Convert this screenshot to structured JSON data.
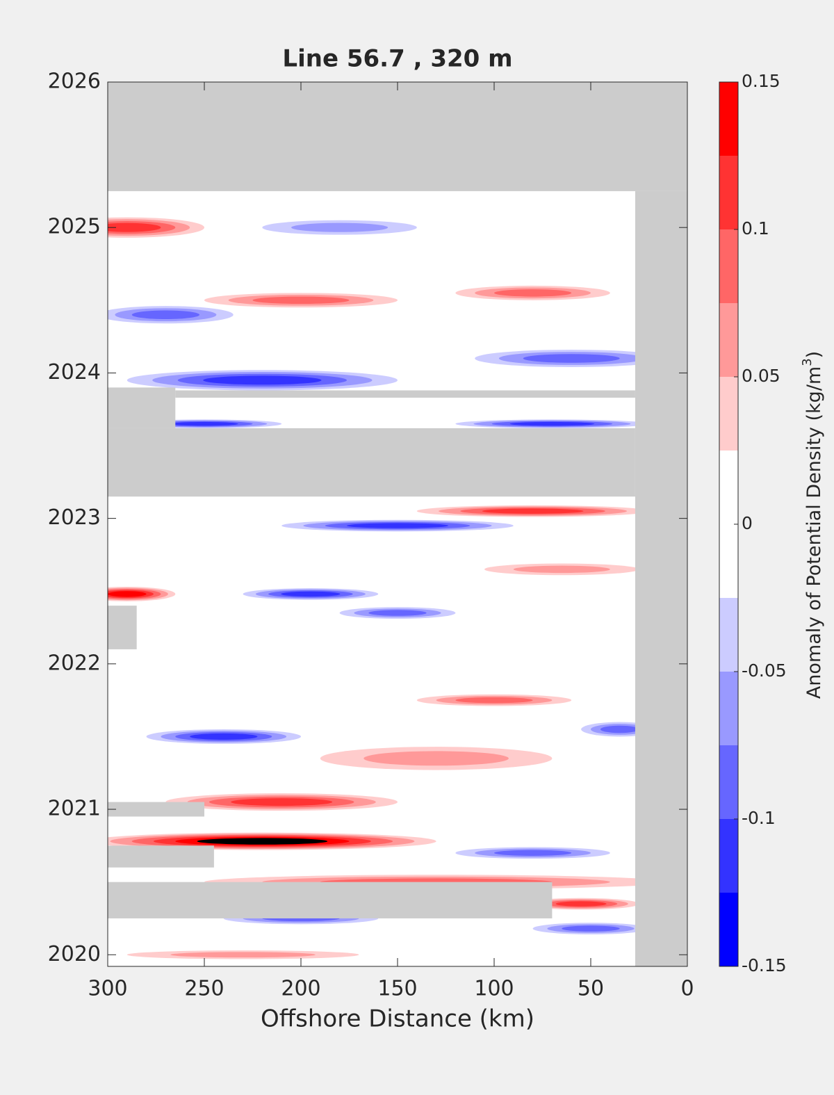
{
  "chart_data": {
    "type": "contour",
    "title": "Line 56.7 , 320 m",
    "xlabel": "Offshore Distance (km)",
    "clabel": "Anomaly of Potential Density (kg/m",
    "clabel_sup": "3",
    "clabel_end": ")",
    "xlim": [
      300,
      0
    ],
    "xticks": [
      300,
      250,
      200,
      150,
      100,
      50,
      0
    ],
    "ylim": [
      2019.92,
      2026
    ],
    "yticks": [
      2020,
      2021,
      2022,
      2023,
      2024,
      2025,
      2026
    ],
    "levels": [
      -0.15,
      -0.125,
      -0.1,
      -0.075,
      -0.05,
      -0.025,
      0,
      0.025,
      0.05,
      0.075,
      0.1,
      0.125,
      0.15
    ],
    "colors": [
      "#0000ff",
      "#3333ff",
      "#6666ff",
      "#9999ff",
      "#ccccff",
      "#ffffff",
      "#ffffff",
      "#ffcccc",
      "#ff9999",
      "#ff6666",
      "#ff3333",
      "#ff0000"
    ],
    "cticks": [
      -0.15,
      -0.1,
      -0.05,
      0,
      0.05,
      0.1,
      0.15
    ],
    "no_data_color": "#cccccc",
    "no_data": [
      {
        "x": [
          300,
          0
        ],
        "y": [
          2025.25,
          2026
        ]
      },
      {
        "x": [
          27,
          0
        ],
        "y": [
          2019.92,
          2025.25
        ]
      },
      {
        "x": [
          300,
          27
        ],
        "y": [
          2023.15,
          2023.62
        ]
      },
      {
        "x": [
          300,
          265
        ],
        "y": [
          2023.62,
          2023.9
        ]
      },
      {
        "x": [
          265,
          27
        ],
        "y": [
          2023.83,
          2023.88
        ]
      },
      {
        "x": [
          300,
          285
        ],
        "y": [
          2022.1,
          2022.4
        ]
      },
      {
        "x": [
          300,
          250
        ],
        "y": [
          2020.95,
          2021.05
        ]
      },
      {
        "x": [
          300,
          245
        ],
        "y": [
          2020.6,
          2020.75
        ]
      },
      {
        "x": [
          300,
          70
        ],
        "y": [
          2020.25,
          2020.5
        ]
      }
    ],
    "features": [
      {
        "x": 290,
        "y": 2025.0,
        "rx": 40,
        "ry": 0.07,
        "value": 0.11
      },
      {
        "x": 200,
        "y": 2024.5,
        "rx": 50,
        "ry": 0.05,
        "value": 0.08
      },
      {
        "x": 80,
        "y": 2024.55,
        "rx": 40,
        "ry": 0.05,
        "value": 0.09
      },
      {
        "x": 180,
        "y": 2025.0,
        "rx": 40,
        "ry": 0.05,
        "value": -0.07
      },
      {
        "x": 270,
        "y": 2024.4,
        "rx": 35,
        "ry": 0.06,
        "value": -0.08
      },
      {
        "x": 220,
        "y": 2023.95,
        "rx": 70,
        "ry": 0.07,
        "value": -0.12
      },
      {
        "x": 60,
        "y": 2024.1,
        "rx": 50,
        "ry": 0.06,
        "value": -0.09
      },
      {
        "x": 250,
        "y": 2023.65,
        "rx": 40,
        "ry": 0.03,
        "value": -0.11
      },
      {
        "x": 70,
        "y": 2023.65,
        "rx": 50,
        "ry": 0.03,
        "value": -0.1
      },
      {
        "x": 150,
        "y": 2022.95,
        "rx": 60,
        "ry": 0.04,
        "value": -0.1
      },
      {
        "x": 80,
        "y": 2023.05,
        "rx": 60,
        "ry": 0.04,
        "value": 0.1
      },
      {
        "x": 290,
        "y": 2022.48,
        "rx": 25,
        "ry": 0.05,
        "value": 0.13
      },
      {
        "x": 195,
        "y": 2022.48,
        "rx": 35,
        "ry": 0.04,
        "value": -0.11
      },
      {
        "x": 150,
        "y": 2022.35,
        "rx": 30,
        "ry": 0.04,
        "value": -0.09
      },
      {
        "x": 65,
        "y": 2022.65,
        "rx": 40,
        "ry": 0.04,
        "value": 0.07
      },
      {
        "x": 240,
        "y": 2021.5,
        "rx": 40,
        "ry": 0.05,
        "value": -0.11
      },
      {
        "x": 100,
        "y": 2021.75,
        "rx": 40,
        "ry": 0.04,
        "value": 0.08
      },
      {
        "x": 35,
        "y": 2021.55,
        "rx": 20,
        "ry": 0.05,
        "value": -0.09
      },
      {
        "x": 130,
        "y": 2021.35,
        "rx": 60,
        "ry": 0.08,
        "value": 0.05
      },
      {
        "x": 210,
        "y": 2021.05,
        "rx": 60,
        "ry": 0.06,
        "value": 0.11
      },
      {
        "x": 220,
        "y": 2020.78,
        "rx": 90,
        "ry": 0.06,
        "value": 0.15
      },
      {
        "x": 80,
        "y": 2020.7,
        "rx": 40,
        "ry": 0.04,
        "value": -0.08
      },
      {
        "x": 130,
        "y": 2020.5,
        "rx": 120,
        "ry": 0.05,
        "value": 0.08
      },
      {
        "x": 55,
        "y": 2020.35,
        "rx": 30,
        "ry": 0.04,
        "value": 0.1
      },
      {
        "x": 200,
        "y": 2020.25,
        "rx": 40,
        "ry": 0.04,
        "value": -0.09
      },
      {
        "x": 50,
        "y": 2020.18,
        "rx": 30,
        "ry": 0.04,
        "value": -0.09
      },
      {
        "x": 230,
        "y": 2020.0,
        "rx": 60,
        "ry": 0.03,
        "value": 0.05
      }
    ]
  }
}
